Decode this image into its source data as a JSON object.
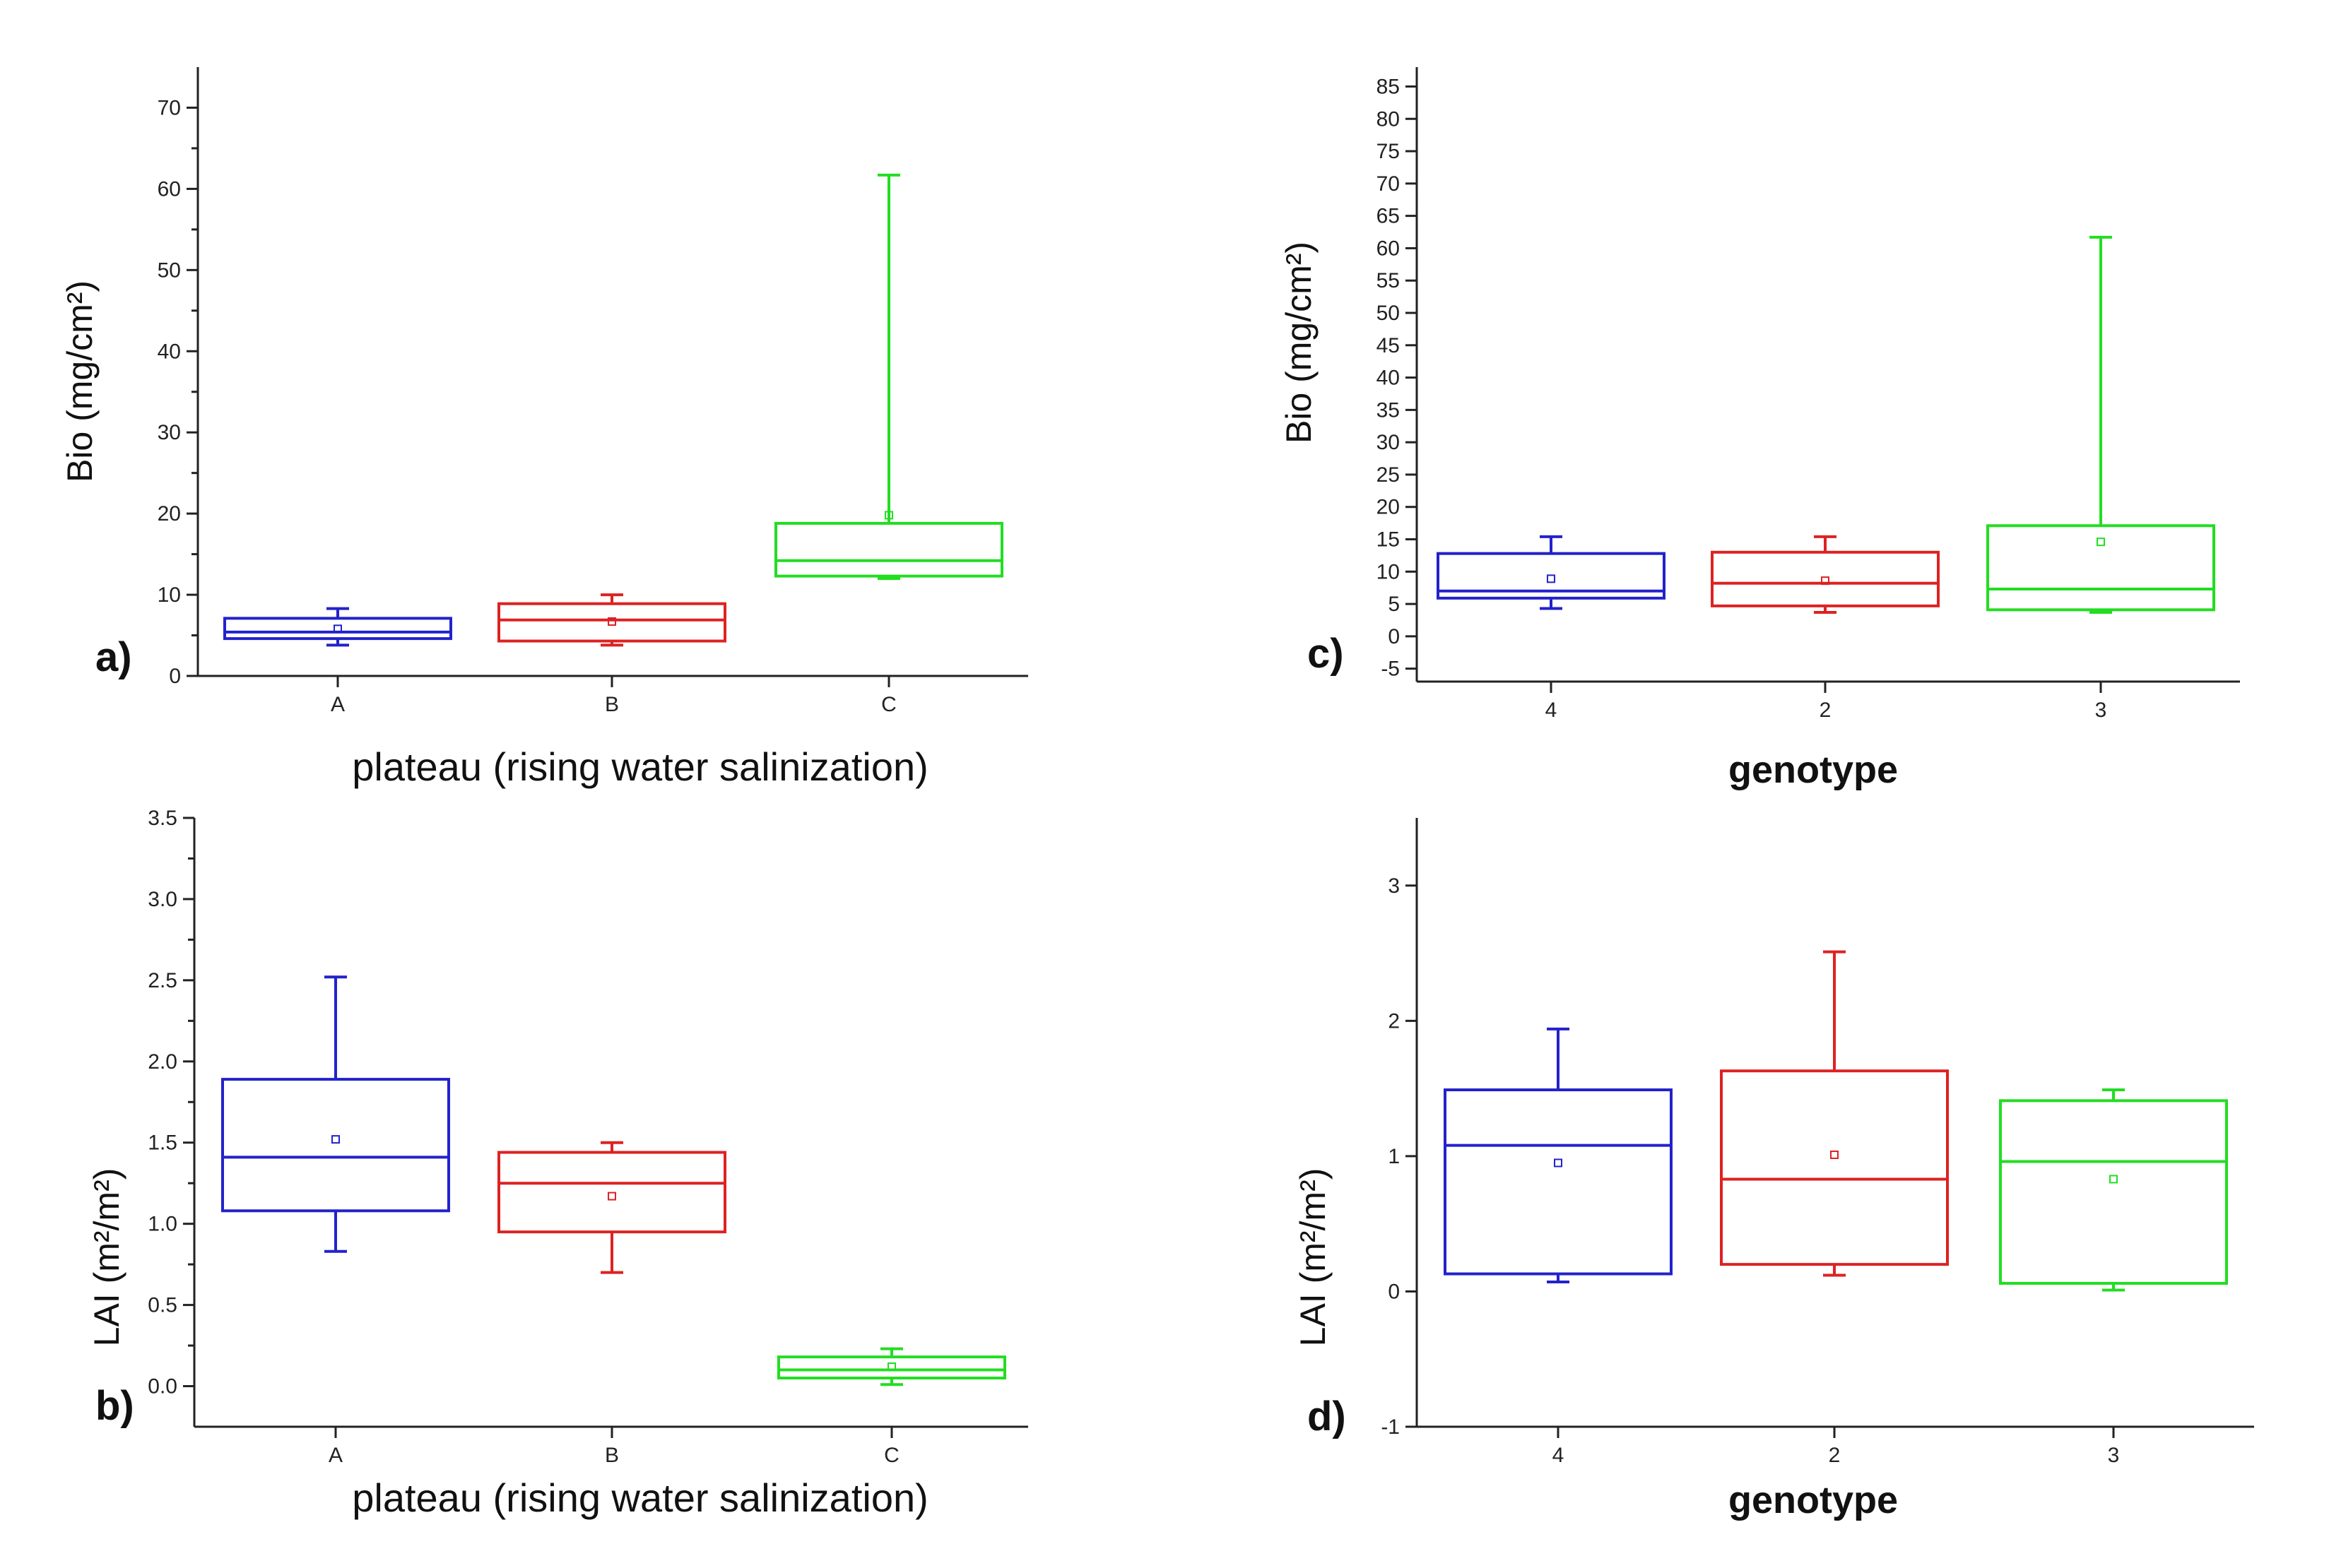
{
  "chart_data": [
    {
      "id": "a",
      "type": "box",
      "panel_label": "a)",
      "xlabel": "plateau (rising water salinization)",
      "ylabel": "Bio (mg/cm²)",
      "ylim": [
        0,
        75
      ],
      "yticks": [
        0,
        10,
        20,
        30,
        40,
        50,
        60,
        70
      ],
      "ytick_labels": [
        "0",
        "10",
        "20",
        "30",
        "40",
        "50",
        "60",
        "70"
      ],
      "minor_yticks": true,
      "categories": [
        "A",
        "B",
        "C"
      ],
      "boxes": [
        {
          "category": "A",
          "color": "#2222cc",
          "whisker_low": 3.8,
          "q1": 4.6,
          "median": 5.4,
          "q3": 7.1,
          "whisker_high": 8.3,
          "mean": 5.8
        },
        {
          "category": "B",
          "color": "#dd2222",
          "whisker_low": 3.8,
          "q1": 4.3,
          "median": 6.9,
          "q3": 8.9,
          "whisker_high": 10.0,
          "mean": 6.7
        },
        {
          "category": "C",
          "color": "#22dd22",
          "whisker_low": 12.0,
          "q1": 12.3,
          "median": 14.2,
          "q3": 18.8,
          "whisker_high": 61.7,
          "mean": 19.8
        }
      ]
    },
    {
      "id": "b",
      "type": "box",
      "panel_label": "b)",
      "xlabel": "plateau (rising water salinization)",
      "ylabel": "LAI (m²/m²)",
      "ylim": [
        -0.25,
        3.5
      ],
      "yticks": [
        0,
        0.5,
        1,
        1.5,
        2,
        2.5,
        3,
        3.5
      ],
      "ytick_labels": [
        "0.0",
        "0.5",
        "1.0",
        "1.5",
        "2.0",
        "2.5",
        "3.0",
        "3.5"
      ],
      "minor_yticks": true,
      "categories": [
        "A",
        "B",
        "C"
      ],
      "boxes": [
        {
          "category": "A",
          "color": "#2222cc",
          "whisker_low": 0.83,
          "q1": 1.08,
          "median": 1.41,
          "q3": 1.89,
          "whisker_high": 2.52,
          "mean": 1.52
        },
        {
          "category": "B",
          "color": "#dd2222",
          "whisker_low": 0.7,
          "q1": 0.95,
          "median": 1.25,
          "q3": 1.44,
          "whisker_high": 1.5,
          "mean": 1.17
        },
        {
          "category": "C",
          "color": "#22dd22",
          "whisker_low": 0.01,
          "q1": 0.05,
          "median": 0.1,
          "q3": 0.18,
          "whisker_high": 0.23,
          "mean": 0.12
        }
      ]
    },
    {
      "id": "c",
      "type": "box",
      "panel_label": "c)",
      "xlabel": "genotype",
      "ylabel": "Bio (mg/cm²)",
      "ylim": [
        -7,
        88
      ],
      "yticks": [
        -5,
        0,
        5,
        10,
        15,
        20,
        25,
        30,
        35,
        40,
        45,
        50,
        55,
        60,
        65,
        70,
        75,
        80,
        85
      ],
      "ytick_labels": [
        "-5",
        "0",
        "5",
        "10",
        "15",
        "20",
        "25",
        "30",
        "35",
        "40",
        "45",
        "50",
        "55",
        "60",
        "65",
        "70",
        "75",
        "80",
        "85"
      ],
      "minor_yticks": false,
      "categories": [
        "4",
        "2",
        "3"
      ],
      "boxes": [
        {
          "category": "4",
          "color": "#2222cc",
          "whisker_low": 4.3,
          "q1": 5.9,
          "median": 7.0,
          "q3": 12.8,
          "whisker_high": 15.4,
          "mean": 8.9
        },
        {
          "category": "2",
          "color": "#dd2222",
          "whisker_low": 3.7,
          "q1": 4.7,
          "median": 8.2,
          "q3": 13.0,
          "whisker_high": 15.4,
          "mean": 8.6
        },
        {
          "category": "3",
          "color": "#22dd22",
          "whisker_low": 3.7,
          "q1": 4.1,
          "median": 7.3,
          "q3": 17.1,
          "whisker_high": 61.7,
          "mean": 14.6
        }
      ]
    },
    {
      "id": "d",
      "type": "box",
      "panel_label": "d)",
      "xlabel": "genotype",
      "ylabel": "LAI (m²/m²)",
      "ylim": [
        -1,
        3.5
      ],
      "yticks": [
        -1,
        0,
        1,
        2,
        3
      ],
      "ytick_labels": [
        "-1",
        "0",
        "1",
        "2",
        "3"
      ],
      "minor_yticks": false,
      "categories": [
        "4",
        "2",
        "3"
      ],
      "boxes": [
        {
          "category": "4",
          "color": "#2222cc",
          "whisker_low": 0.07,
          "q1": 0.13,
          "median": 1.08,
          "q3": 1.49,
          "whisker_high": 1.94,
          "mean": 0.95
        },
        {
          "category": "2",
          "color": "#dd2222",
          "whisker_low": 0.12,
          "q1": 0.2,
          "median": 0.83,
          "q3": 1.63,
          "whisker_high": 2.51,
          "mean": 1.01
        },
        {
          "category": "3",
          "color": "#22dd22",
          "whisker_low": 0.01,
          "q1": 0.06,
          "median": 0.96,
          "q3": 1.41,
          "whisker_high": 1.49,
          "mean": 0.83
        }
      ]
    }
  ]
}
